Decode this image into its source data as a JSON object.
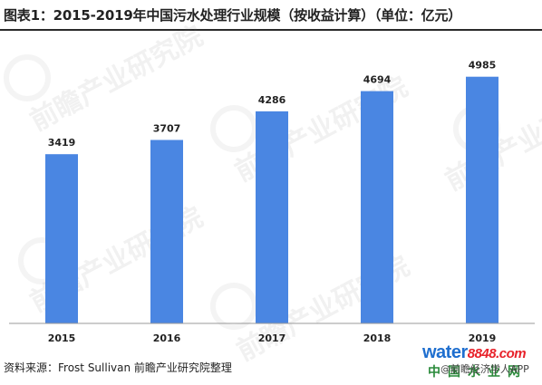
{
  "title": "图表1：2015-2019年中国污水处理行业规模（按收益计算）（单位：亿元）",
  "source": "资料来源：Frost Sullivan 前瞻产业研究院整理",
  "watermark": "前瞻产业研究院",
  "brand": {
    "water": "water",
    "number": "8848",
    "suffix": ".com",
    "chinese": "中国水业网",
    "sub": "@前瞻经济学人APP"
  },
  "colors": {
    "bar": "#4a86e2",
    "axis": "#999999",
    "title_rule": "#2a2a2a"
  },
  "chart_data": {
    "type": "bar",
    "categories": [
      "2015",
      "2016",
      "2017",
      "2018",
      "2019"
    ],
    "values": [
      3419,
      3707,
      4286,
      4694,
      4985
    ],
    "title": "图表1：2015-2019年中国污水处理行业规模（按收益计算）（单位：亿元）",
    "xlabel": "",
    "ylabel": "",
    "ylim": [
      0,
      5400
    ],
    "grid": false,
    "legend": "none"
  }
}
